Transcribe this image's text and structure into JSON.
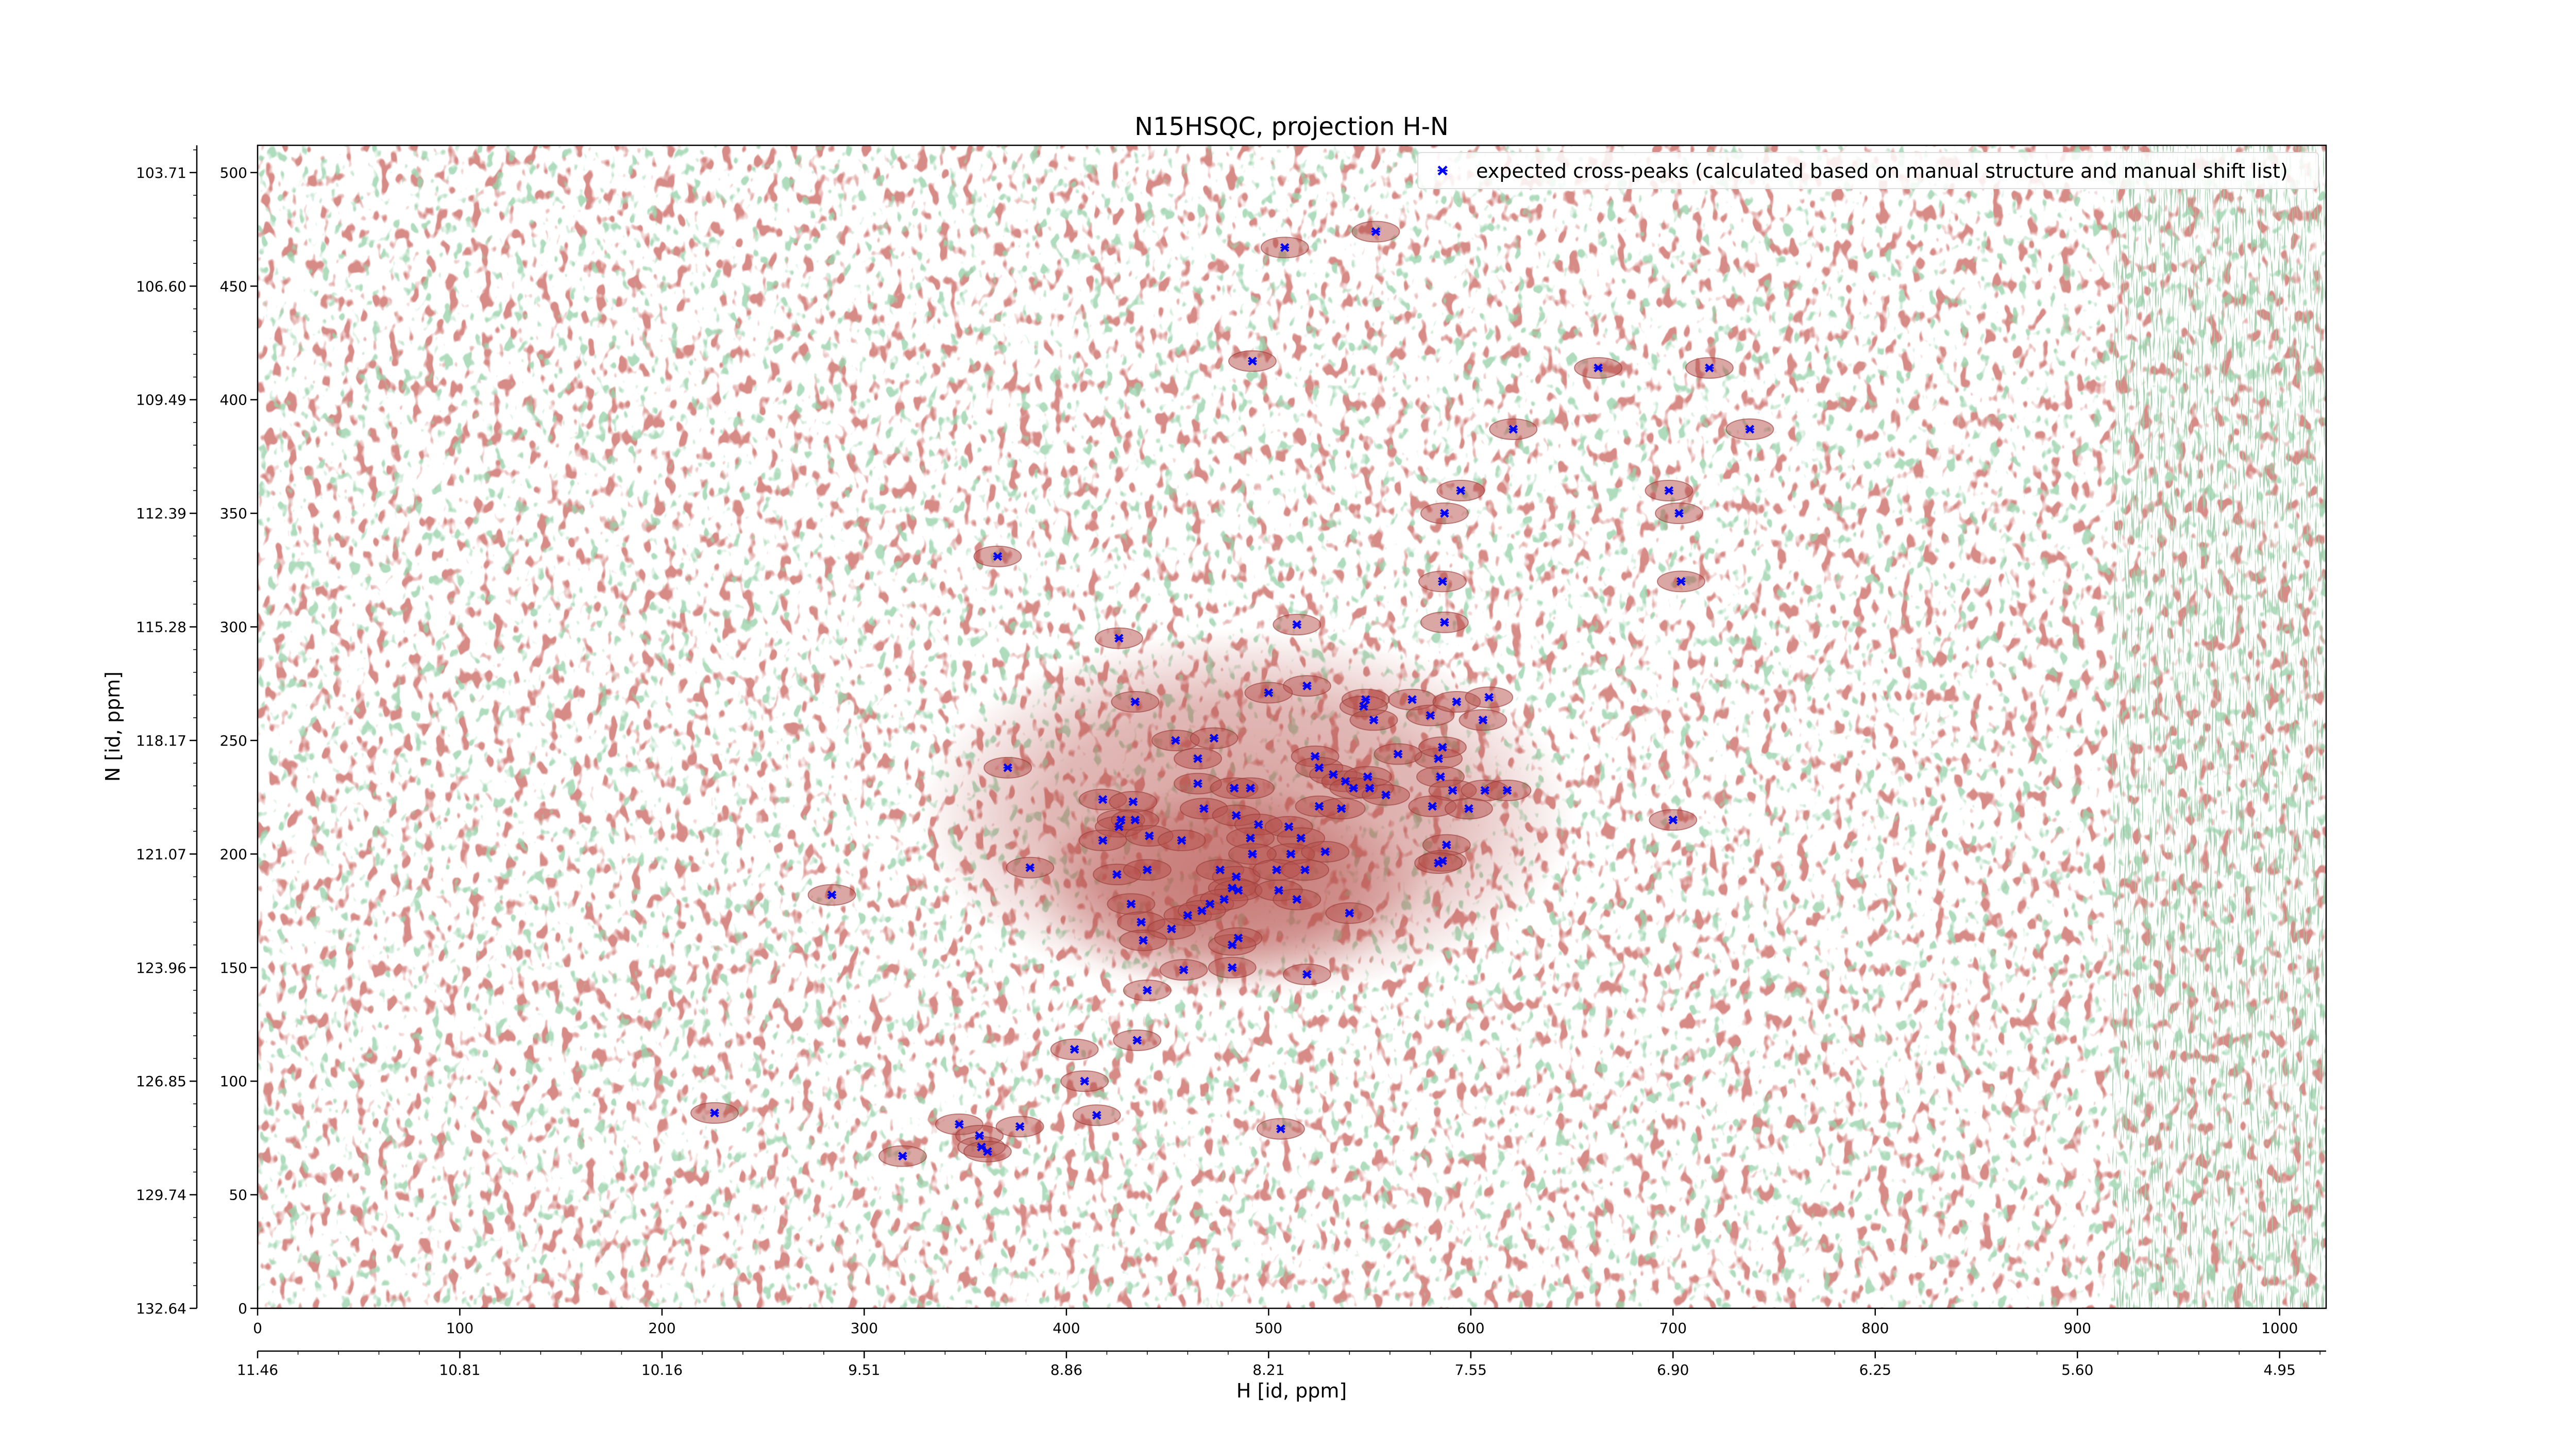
{
  "chart_data": {
    "type": "scatter",
    "title": "N15HSQC, projection H-N",
    "xlabel": "H [id, ppm]",
    "ylabel": "N [id, ppm]",
    "xlim": [
      0,
      1023
    ],
    "ylim": [
      0,
      512
    ],
    "primary_x_ticks": [
      0,
      100,
      200,
      300,
      400,
      500,
      600,
      700,
      800,
      900,
      1000
    ],
    "secondary_x_ticks": [
      "11.46",
      "10.81",
      "10.16",
      "9.51",
      "8.86",
      "8.21",
      "7.55",
      "6.90",
      "6.25",
      "5.60",
      "4.95"
    ],
    "primary_y_ticks": [
      0,
      50,
      100,
      150,
      200,
      250,
      300,
      350,
      400,
      450,
      500
    ],
    "secondary_y_ticks": [
      "132.64",
      "129.74",
      "126.85",
      "123.96",
      "121.07",
      "118.17",
      "115.28",
      "112.39",
      "109.49",
      "106.60",
      "103.71"
    ],
    "legend_position": "top-right",
    "series": [
      {
        "name": "expected cross-peaks (calculated based on manual structure and manual shift list)",
        "color": "#0000ff",
        "marker": "x",
        "points": [
          [
            508,
            467
          ],
          [
            553,
            474
          ],
          [
            492,
            417
          ],
          [
            663,
            414
          ],
          [
            718,
            414
          ],
          [
            621,
            387
          ],
          [
            738,
            387
          ],
          [
            595,
            360
          ],
          [
            698,
            360
          ],
          [
            587,
            350
          ],
          [
            703,
            350
          ],
          [
            366,
            331
          ],
          [
            586,
            320
          ],
          [
            704,
            320
          ],
          [
            514,
            301
          ],
          [
            587,
            302
          ],
          [
            426,
            295
          ],
          [
            519,
            274
          ],
          [
            500,
            271
          ],
          [
            434,
            267
          ],
          [
            548,
            268
          ],
          [
            547,
            265
          ],
          [
            571,
            268
          ],
          [
            580,
            261
          ],
          [
            593,
            267
          ],
          [
            609,
            269
          ],
          [
            552,
            259
          ],
          [
            606,
            259
          ],
          [
            454,
            250
          ],
          [
            473,
            251
          ],
          [
            465,
            242
          ],
          [
            523,
            243
          ],
          [
            584,
            242
          ],
          [
            586,
            247
          ],
          [
            564,
            244
          ],
          [
            371,
            238
          ],
          [
            525,
            238
          ],
          [
            532,
            235
          ],
          [
            538,
            232
          ],
          [
            549,
            234
          ],
          [
            585,
            234
          ],
          [
            465,
            231
          ],
          [
            483,
            229
          ],
          [
            491,
            229
          ],
          [
            542,
            229
          ],
          [
            550,
            229
          ],
          [
            591,
            228
          ],
          [
            607,
            228
          ],
          [
            618,
            228
          ],
          [
            558,
            226
          ],
          [
            418,
            224
          ],
          [
            433,
            223
          ],
          [
            468,
            220
          ],
          [
            525,
            221
          ],
          [
            536,
            220
          ],
          [
            581,
            221
          ],
          [
            599,
            220
          ],
          [
            427,
            215
          ],
          [
            484,
            217
          ],
          [
            700,
            215
          ],
          [
            426,
            212
          ],
          [
            434,
            215
          ],
          [
            495,
            213
          ],
          [
            510,
            212
          ],
          [
            441,
            208
          ],
          [
            457,
            206
          ],
          [
            491,
            207
          ],
          [
            516,
            207
          ],
          [
            588,
            204
          ],
          [
            418,
            206
          ],
          [
            511,
            200
          ],
          [
            492,
            200
          ],
          [
            528,
            201
          ],
          [
            382,
            194
          ],
          [
            425,
            191
          ],
          [
            440,
            193
          ],
          [
            476,
            193
          ],
          [
            484,
            190
          ],
          [
            504,
            193
          ],
          [
            518,
            193
          ],
          [
            586,
            197
          ],
          [
            584,
            196
          ],
          [
            482,
            185
          ],
          [
            485,
            184
          ],
          [
            505,
            184
          ],
          [
            284,
            182
          ],
          [
            432,
            178
          ],
          [
            471,
            178
          ],
          [
            478,
            180
          ],
          [
            514,
            180
          ],
          [
            460,
            173
          ],
          [
            467,
            175
          ],
          [
            540,
            174
          ],
          [
            437,
            170
          ],
          [
            452,
            167
          ],
          [
            438,
            162
          ],
          [
            482,
            160
          ],
          [
            485,
            163
          ],
          [
            482,
            150
          ],
          [
            458,
            149
          ],
          [
            519,
            147
          ],
          [
            440,
            140
          ],
          [
            435,
            118
          ],
          [
            404,
            114
          ],
          [
            409,
            100
          ],
          [
            415,
            85
          ],
          [
            226,
            86
          ],
          [
            347,
            81
          ],
          [
            377,
            80
          ],
          [
            506,
            79
          ],
          [
            357,
            76
          ],
          [
            358,
            71
          ],
          [
            361,
            69
          ],
          [
            319,
            67
          ]
        ]
      }
    ]
  }
}
